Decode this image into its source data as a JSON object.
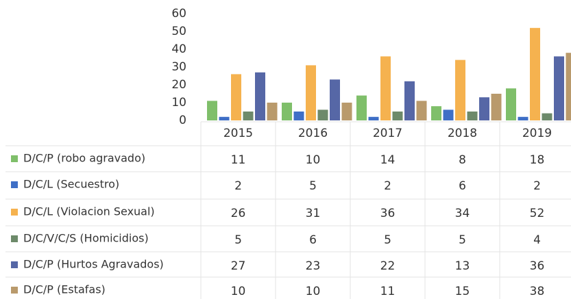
{
  "chart_data": {
    "type": "bar",
    "categories": [
      "2015",
      "2016",
      "2017",
      "2018",
      "2019"
    ],
    "series": [
      {
        "name": "D/C/P (robo agravado)",
        "color": "#7fbf6a",
        "values": [
          11,
          10,
          14,
          8,
          18
        ]
      },
      {
        "name": "D/C/L (Secuestro)",
        "color": "#3f6fc6",
        "values": [
          2,
          5,
          2,
          6,
          2
        ]
      },
      {
        "name": "D/C/L (Violacion Sexual)",
        "color": "#f5b24f",
        "values": [
          26,
          31,
          36,
          34,
          52
        ]
      },
      {
        "name": "D/C/V/C/S (Homicidios)",
        "color": "#6d8a6a",
        "values": [
          5,
          6,
          5,
          5,
          4
        ]
      },
      {
        "name": "D/C/P (Hurtos Agravados)",
        "color": "#5667a6",
        "values": [
          27,
          23,
          22,
          13,
          36
        ]
      },
      {
        "name": "D/C/P (Estafas)",
        "color": "#b99a6c",
        "values": [
          10,
          10,
          11,
          15,
          38
        ]
      }
    ],
    "ylim": [
      0,
      60
    ],
    "yticks": [
      0,
      10,
      20,
      30,
      40,
      50,
      60
    ],
    "data_table": true
  }
}
